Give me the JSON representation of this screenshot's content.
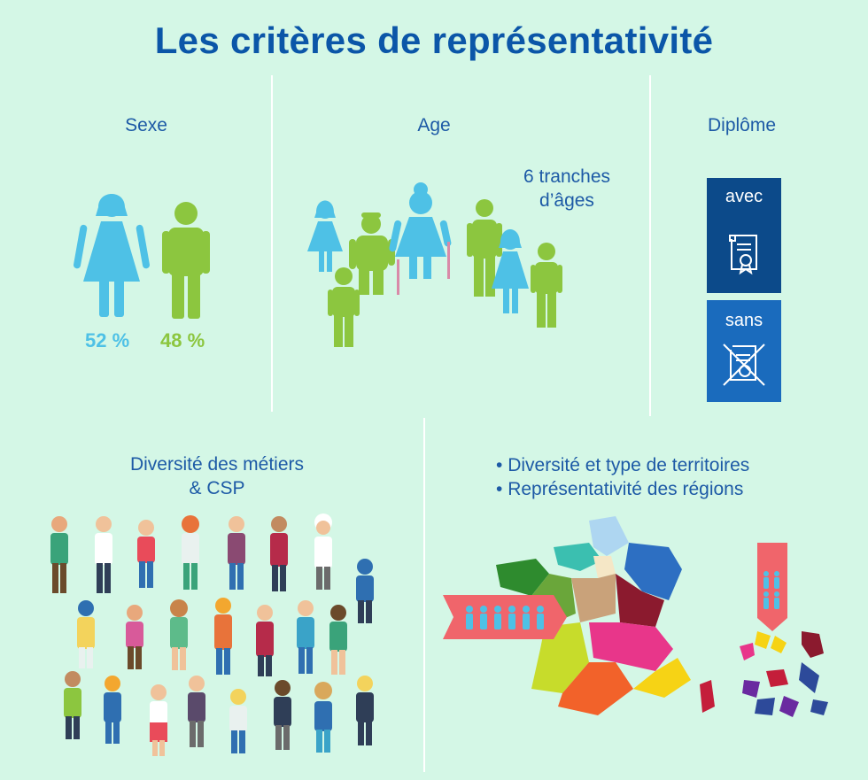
{
  "title": "Les critères de représentativité",
  "sexe": {
    "label": "Sexe",
    "female": {
      "percent": "52 %",
      "share": 52,
      "color": "#4ec1e6"
    },
    "male": {
      "percent": "48 %",
      "share": 48,
      "color": "#8cc63f"
    }
  },
  "age": {
    "label": "Age",
    "note_line1": "6 tranches",
    "note_line2": "d’âges"
  },
  "diplome": {
    "label": "Diplôme",
    "with_label": "avec",
    "without_label": "sans",
    "with_color": "#0c4a8a",
    "without_color": "#1a6bbd"
  },
  "metiers": {
    "label_line1": "Diversité des métiers",
    "label_line2": "& CSP"
  },
  "territoires": {
    "bullets": [
      "Diversité et type de territoires",
      "Représentativité des régions"
    ]
  },
  "icons": {
    "female": "woman-icon",
    "male": "man-icon",
    "diploma": "diploma-scroll-icon",
    "no_diploma": "crossed-diploma-icon",
    "map": "france-regions-map",
    "people": "people-crowd-icon"
  }
}
